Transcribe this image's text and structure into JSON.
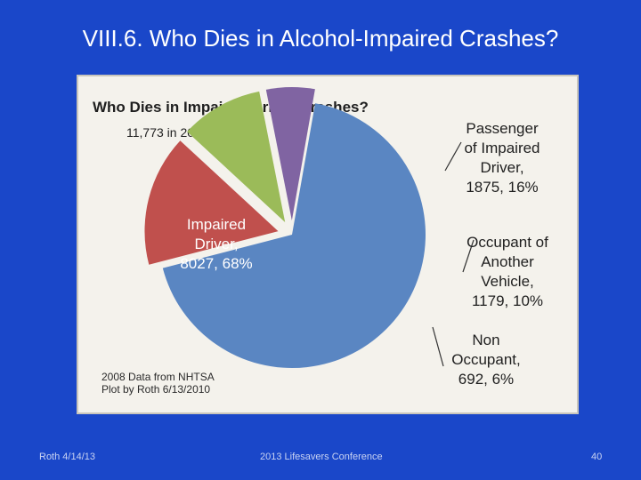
{
  "slide": {
    "title": "VIII.6. Who Dies in Alcohol-Impaired Crashes?",
    "footer_left": "Roth 4/14/13",
    "footer_center": "2013 Lifesavers Conference",
    "page_number": "40"
  },
  "chart_data": {
    "type": "pie",
    "title": "Who  Dies in Impaired-Driver Crashes?",
    "subtitle": "11,773 in 2008",
    "total": 11773,
    "slices": [
      {
        "name": "Impaired Driver",
        "value": 8027,
        "percent": 68,
        "color": "#5a86c2",
        "label_lines": [
          "Impaired",
          "Driver,",
          "8027, 68%"
        ]
      },
      {
        "name": "Passenger of Impaired Driver",
        "value": 1875,
        "percent": 16,
        "color": "#c0504d",
        "label_lines": [
          "Passenger",
          "of Impaired",
          "Driver,",
          "1875, 16%"
        ]
      },
      {
        "name": "Occupant of Another Vehicle",
        "value": 1179,
        "percent": 10,
        "color": "#9bbb59",
        "label_lines": [
          "Occupant of",
          "Another",
          "Vehicle,",
          "1179, 10%"
        ]
      },
      {
        "name": "Non Occupant",
        "value": 692,
        "percent": 6,
        "color": "#8064a2",
        "label_lines": [
          "Non",
          "Occupant,",
          "692, 6%"
        ]
      }
    ],
    "source_lines": [
      "2008 Data from NHTSA",
      "Plot by Roth 6/13/2010"
    ]
  }
}
